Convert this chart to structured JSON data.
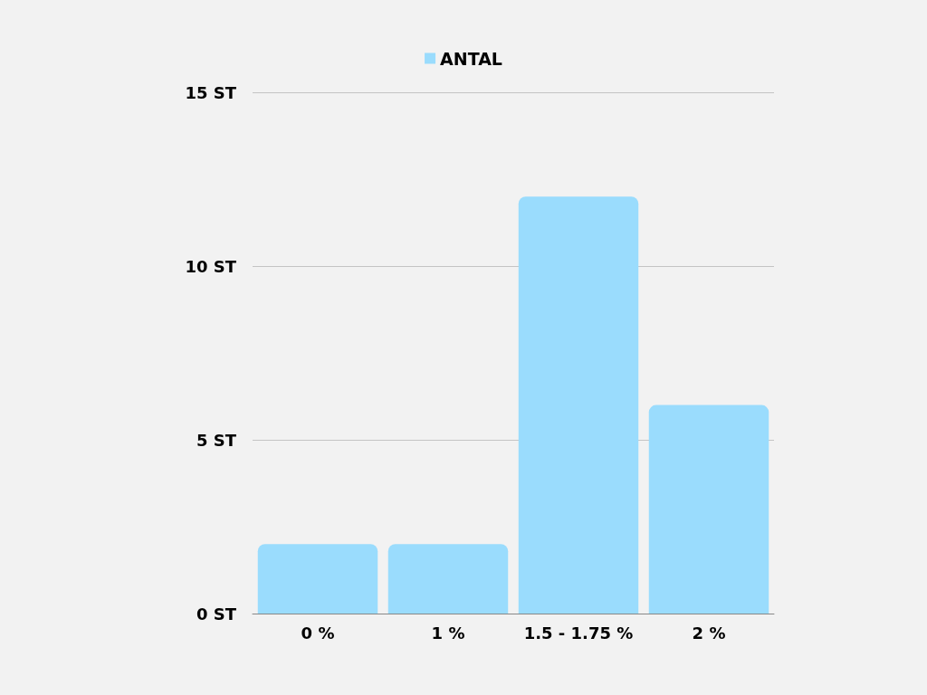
{
  "chart_data": {
    "type": "bar",
    "categories": [
      "0 %",
      "1 %",
      "1.5 - 1.75 %",
      "2 %"
    ],
    "series": [
      {
        "name": "ANTAL",
        "color": "#9adcfd",
        "values": [
          2,
          2,
          12,
          6
        ]
      }
    ],
    "ylim": [
      0,
      15
    ],
    "yticks": [
      {
        "value": 0,
        "label": "0 ST"
      },
      {
        "value": 5,
        "label": "5 ST"
      },
      {
        "value": 10,
        "label": "10 ST"
      },
      {
        "value": 15,
        "label": "15 ST"
      }
    ],
    "grid": "y",
    "legend": "top"
  }
}
